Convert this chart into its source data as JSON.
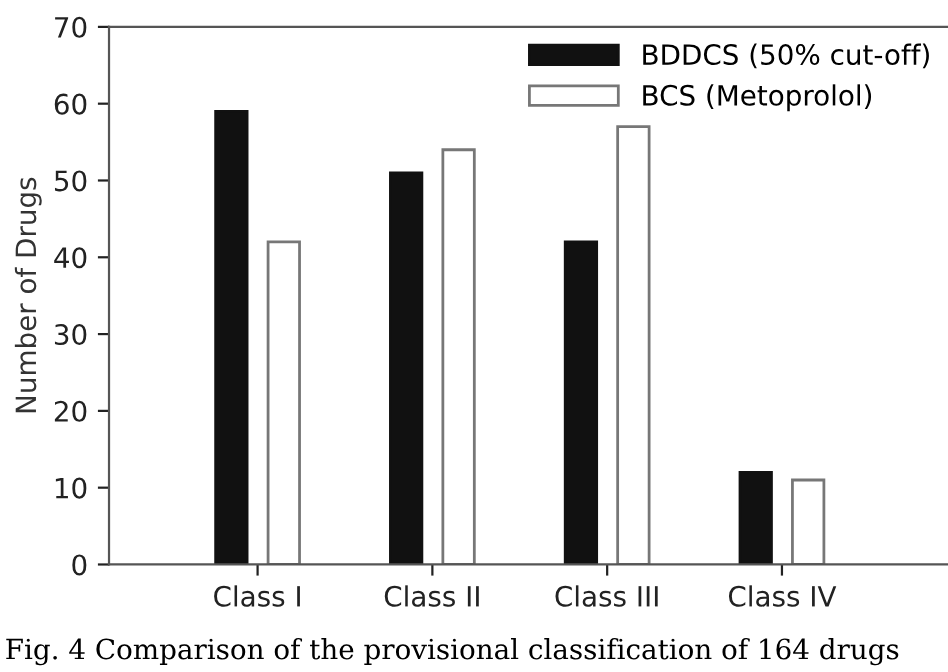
{
  "chart_data": {
    "type": "bar",
    "ylabel": "Number of Drugs",
    "categories": [
      "Class I",
      "Class II",
      "Class III",
      "Class IV"
    ],
    "series": [
      {
        "name": "BDDCS (50% cut-off)",
        "color": "#111111",
        "values": [
          59,
          51,
          42,
          12
        ]
      },
      {
        "name": "BCS (Metoprolol)",
        "color": "#ffffff",
        "values": [
          42,
          54,
          57,
          11
        ]
      }
    ],
    "ylim": [
      0,
      70
    ],
    "yticks": [
      0,
      10,
      20,
      30,
      40,
      50,
      60,
      70
    ],
    "grid": false,
    "legend": "top right",
    "annotations": [
      "Fig. 4 Comparison of the provisional classification of 164 drugs"
    ]
  }
}
